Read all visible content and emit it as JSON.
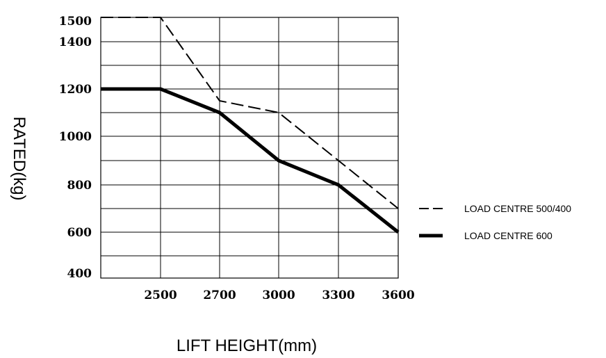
{
  "chart_data": {
    "type": "line",
    "xlabel": "LIFT HEIGHT(mm)",
    "ylabel": "RATED(kg)",
    "x_ticks": [
      "2500",
      "2700",
      "3000",
      "3300",
      "3600"
    ],
    "y_ticks": [
      "400",
      "600",
      "800",
      "1000",
      "1200",
      "1400",
      "1500"
    ],
    "ylim": [
      400,
      1500
    ],
    "grid": true,
    "legend_position": "right",
    "series": [
      {
        "name": "LOAD CENTRE 500/400",
        "style": "dashed",
        "points": [
          {
            "x": "start",
            "y": 1500
          },
          {
            "x": "2500",
            "y": 1500
          },
          {
            "x": "2700",
            "y": 1150
          },
          {
            "x": "3000",
            "y": 1100
          },
          {
            "x": "3300",
            "y": 900
          },
          {
            "x": "3600",
            "y": 700
          }
        ]
      },
      {
        "name": "LOAD CENTRE 600",
        "style": "solid-bold",
        "points": [
          {
            "x": "start",
            "y": 1200
          },
          {
            "x": "2500",
            "y": 1200
          },
          {
            "x": "2700",
            "y": 1100
          },
          {
            "x": "3000",
            "y": 900
          },
          {
            "x": "3300",
            "y": 800
          },
          {
            "x": "3600",
            "y": 600
          }
        ]
      }
    ]
  }
}
